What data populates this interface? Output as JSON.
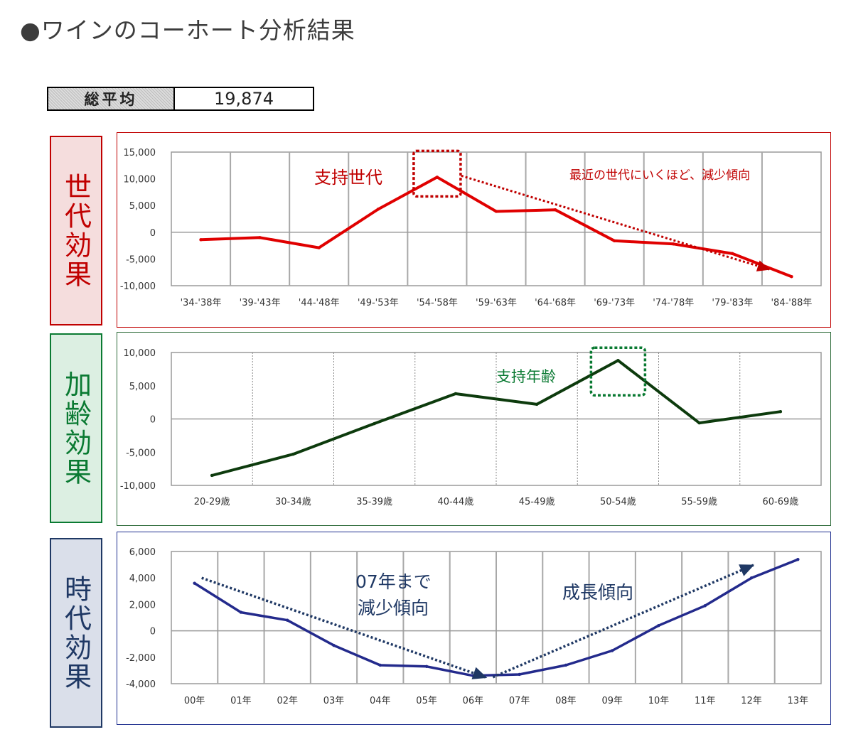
{
  "page_title": "●ワインのコーホート分析結果",
  "summary": {
    "label": "総平均",
    "value": "19,874"
  },
  "side_labels": {
    "generation": "世代効果",
    "age": "加齢効果",
    "period": "時代効果"
  },
  "chart_data": [
    {
      "type": "line",
      "id": "generation",
      "categories": [
        "'34-'38年",
        "'39-'43年",
        "'44-'48年",
        "'49-'53年",
        "'54-'58年",
        "'59-'63年",
        "'64-'68年",
        "'69-'73年",
        "'74-'78年",
        "'79-'83年",
        "'84-'88年"
      ],
      "values": [
        -1400,
        -1000,
        -2900,
        4300,
        10300,
        3900,
        4200,
        -1600,
        -2200,
        -4000,
        -8300
      ],
      "ylim": [
        -10000,
        15000
      ],
      "yticks": [
        "15,000",
        "10,000",
        "5,000",
        "0",
        "-5,000",
        "-10,000"
      ],
      "grid": "vertical",
      "color": "#e00000",
      "annotations": [
        "支持世代",
        "最近の世代にいくほど、減少傾向"
      ],
      "annotation_color": "#c00000",
      "highlight_category": "'54-'58年"
    },
    {
      "type": "line",
      "id": "age",
      "categories": [
        "20-29歳",
        "30-34歳",
        "35-39歳",
        "40-44歳",
        "45-49歳",
        "50-54歳",
        "55-59歳",
        "60-69歳"
      ],
      "values": [
        -8500,
        -5300,
        -700,
        3800,
        2200,
        8800,
        -600,
        1100
      ],
      "ylim": [
        -10000,
        10000
      ],
      "yticks": [
        "10,000",
        "5,000",
        "0",
        "-5,000",
        "-10,000"
      ],
      "grid": "vertical",
      "color": "#0d3b0d",
      "annotations": [
        "支持年齢"
      ],
      "annotation_color": "#0a7a32",
      "highlight_category": "50-54歳"
    },
    {
      "type": "line",
      "id": "period",
      "categories": [
        "00年",
        "01年",
        "02年",
        "03年",
        "04年",
        "05年",
        "06年",
        "07年",
        "08年",
        "09年",
        "10年",
        "11年",
        "12年",
        "13年"
      ],
      "values": [
        3600,
        1400,
        800,
        -1100,
        -2600,
        -2700,
        -3400,
        -3300,
        -2600,
        -1500,
        400,
        1900,
        4000,
        5400
      ],
      "ylim": [
        -4000,
        6000
      ],
      "yticks": [
        "6,000",
        "4,000",
        "2,000",
        "0",
        "-2,000",
        "-4,000"
      ],
      "grid": "vertical",
      "color": "#232a8c",
      "annotations": [
        "07年まで",
        "減少傾向",
        "成長傾向"
      ],
      "annotation_color": "#1f3864",
      "trend_color": "#1f3864"
    }
  ]
}
